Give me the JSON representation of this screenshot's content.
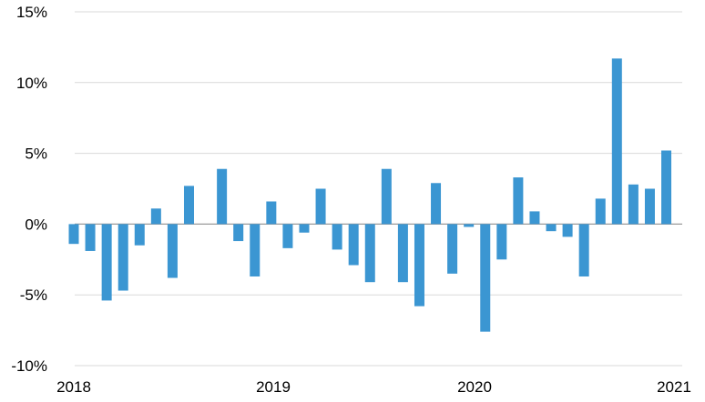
{
  "chart_data": {
    "type": "bar",
    "title": "",
    "xlabel": "",
    "ylabel": "",
    "ylim": [
      -10,
      15
    ],
    "y_ticks": [
      15,
      10,
      5,
      0,
      -5,
      -10
    ],
    "y_tick_labels": [
      "15%",
      "10%",
      "5%",
      "0%",
      "-5%",
      "-10%"
    ],
    "x_tick_labels": [
      "2018",
      "2019",
      "2020",
      "2021"
    ],
    "grid": true,
    "bar_color": "#3b96d2",
    "series": [
      {
        "values": [
          -1.4,
          -1.9,
          -5.4,
          -4.7,
          -1.5,
          1.1,
          -3.8,
          2.7,
          0,
          3.9,
          -1.2,
          -3.7,
          1.6,
          -1.7,
          -0.6,
          2.5,
          -1.8,
          -2.9,
          -4.1,
          3.9,
          -4.1,
          -5.8,
          2.9,
          -3.5,
          -0.2,
          -7.6,
          -2.5,
          3.3,
          0.9,
          -0.5,
          -0.9,
          -3.7,
          1.8,
          11.7,
          2.8,
          2.5,
          5.2
        ]
      }
    ]
  }
}
